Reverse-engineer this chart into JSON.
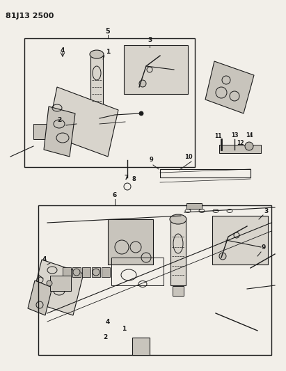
{
  "title": "81J13 2500",
  "bg_color": "#f2efe9",
  "line_color": "#1a1a1a",
  "gray1": "#c8c4bc",
  "gray2": "#d8d4cc",
  "gray3": "#b8b4ac",
  "figsize": [
    4.11,
    5.33
  ],
  "dpi": 100
}
